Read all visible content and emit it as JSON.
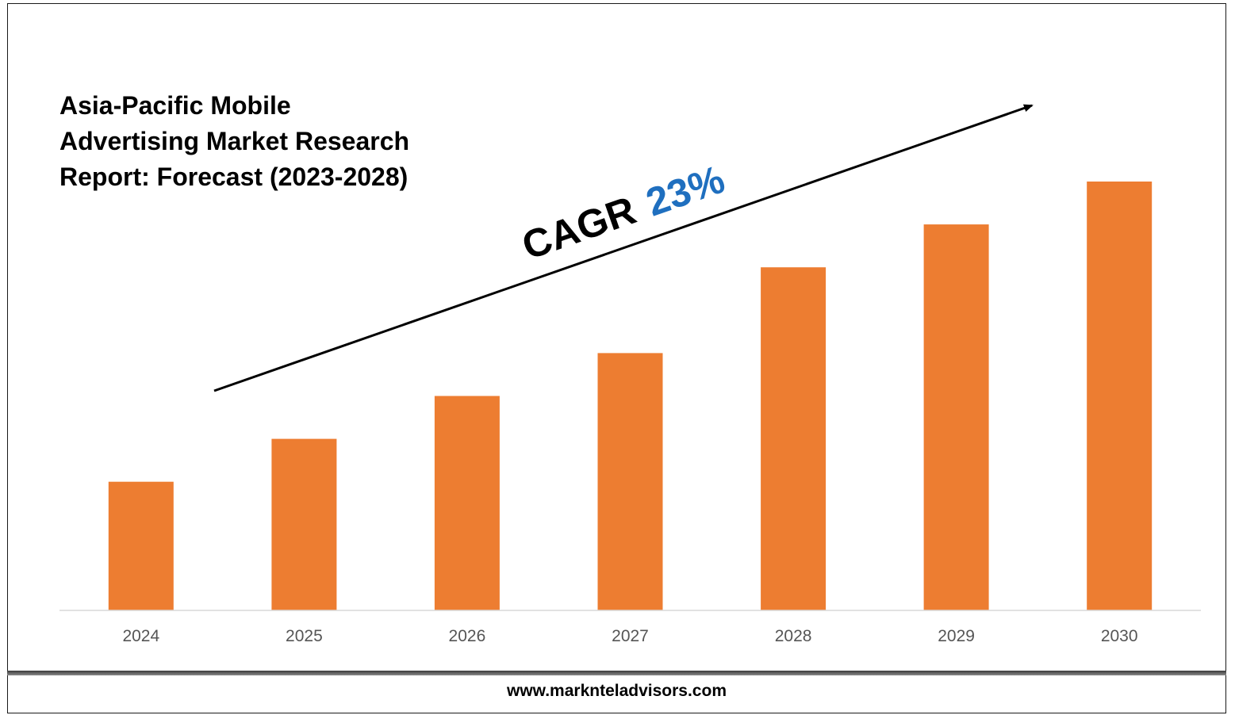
{
  "chart_data": {
    "type": "bar",
    "title_lines": [
      "Asia-Pacific Mobile",
      "Advertising Market Research",
      "Report: Forecast (2023-2028)"
    ],
    "categories": [
      "2024",
      "2025",
      "2026",
      "2027",
      "2028",
      "2029",
      "2030"
    ],
    "values": [
      3.0,
      4.0,
      5.0,
      6.0,
      8.0,
      9.0,
      10.0
    ],
    "ylim": [
      0,
      12.2
    ],
    "bar_color": "#ED7D31",
    "grid": false,
    "legend": "none",
    "annotation": {
      "label": "CAGR",
      "value": "23%",
      "label_color": "#000000",
      "value_color": "#1F6FBF"
    }
  },
  "footer": {
    "website": "www.marknteladvisors.com"
  }
}
